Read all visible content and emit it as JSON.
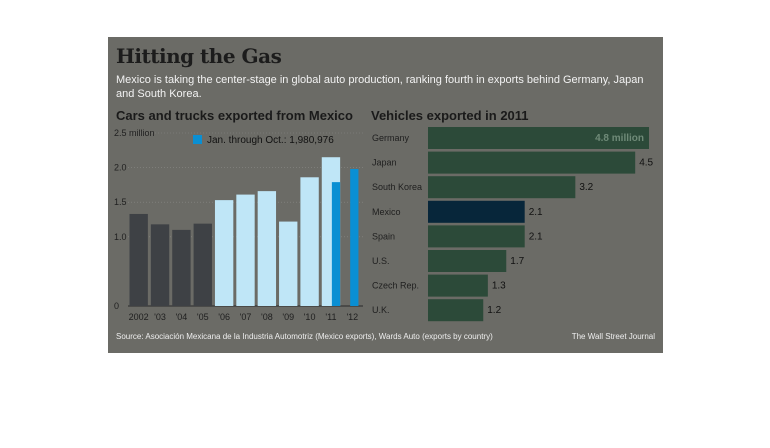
{
  "header": {
    "title": "Hitting the Gas",
    "subtitle": "Mexico is taking the center-stage in global auto production, ranking fourth in exports behind Germany, Japan and South Korea."
  },
  "footer": {
    "source": "Source:  Asociación Mexicana de la Industria Automotriz (Mexico exports), Wards Auto (exports by country)",
    "credit": "The Wall Street Journal"
  },
  "colors": {
    "panel": "#6b6b66",
    "bar_annual": "#3e4145",
    "bar_jan_oct": "#bfe6f7",
    "bar_jan_oct_highlight": "#0a8fd3",
    "bar_country": "#2c4a39",
    "bar_mexico": "#07263a"
  },
  "chart_data": [
    {
      "type": "bar",
      "title": "Cars and trucks exported from Mexico",
      "categories": [
        "2002",
        "'03",
        "'04",
        "'05",
        "'06",
        "'07",
        "'08",
        "'09",
        "'10",
        "'11",
        "'12"
      ],
      "series": [
        {
          "name": "",
          "values": [
            1.33,
            1.18,
            1.1,
            1.19,
            1.53,
            1.61,
            1.66,
            1.22,
            1.86,
            2.15,
            null
          ]
        },
        {
          "name": "Jan. through Oct.: 1,980,976",
          "values": [
            null,
            null,
            null,
            null,
            null,
            null,
            null,
            null,
            null,
            1.79,
            1.98
          ]
        }
      ],
      "y_ticks": [
        "0",
        "1.0",
        "1.5",
        "2.0",
        "2.5 million"
      ],
      "ylim": [
        0,
        2.5
      ],
      "legend": {
        "label": "Jan. through Oct.: 1,980,976",
        "placement": "top"
      },
      "grid": true
    },
    {
      "type": "bar",
      "orientation": "horizontal",
      "title": "Vehicles exported in 2011",
      "categories": [
        "Germany",
        "Japan",
        "South Korea",
        "Mexico",
        "Spain",
        "U.S.",
        "Czech Rep.",
        "U.K."
      ],
      "values": [
        4.8,
        4.5,
        3.2,
        2.1,
        2.1,
        1.7,
        1.3,
        1.2
      ],
      "value_labels": [
        "4.8 million",
        "4.5",
        "3.2",
        "2.1",
        "2.1",
        "1.7",
        "1.3",
        "1.2"
      ],
      "highlight": "Mexico",
      "xlim": [
        0,
        4.8
      ]
    }
  ]
}
